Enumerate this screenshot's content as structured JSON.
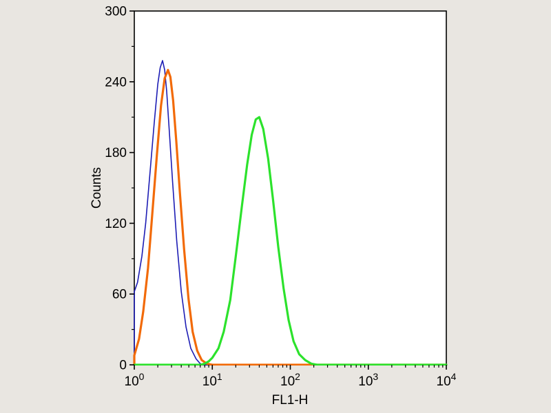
{
  "figure": {
    "background_color": "#e9e6e1",
    "plot_background_color": "#ffffff",
    "frame_color": "#000000"
  },
  "chart_data": {
    "type": "line",
    "title": "",
    "xlabel": "FL1-H",
    "ylabel": "Counts",
    "x_scale": "log10",
    "xlim": [
      1,
      10000
    ],
    "ylim": [
      0,
      300
    ],
    "y_ticks": [
      0,
      60,
      120,
      180,
      240,
      300
    ],
    "y_minor_step": 30,
    "x_tick_exponents": [
      0,
      1,
      2,
      3,
      4
    ],
    "x_tick_base": "10",
    "grid": false,
    "legend": "none",
    "series": [
      {
        "name": "blue-curve",
        "color": "#1c1cb4",
        "line_width": 1.6,
        "peak": {
          "x": 2.3,
          "y": 258
        },
        "points": [
          [
            1,
            0
          ],
          [
            1,
            62
          ],
          [
            1.1,
            70
          ],
          [
            1.25,
            92
          ],
          [
            1.4,
            120
          ],
          [
            1.6,
            165
          ],
          [
            1.8,
            205
          ],
          [
            2.0,
            238
          ],
          [
            2.15,
            252
          ],
          [
            2.3,
            258
          ],
          [
            2.45,
            250
          ],
          [
            2.6,
            232
          ],
          [
            2.8,
            200
          ],
          [
            3.1,
            155
          ],
          [
            3.5,
            105
          ],
          [
            4.0,
            62
          ],
          [
            4.6,
            32
          ],
          [
            5.3,
            14
          ],
          [
            6.2,
            5
          ],
          [
            7.0,
            1
          ],
          [
            7.6,
            0
          ],
          [
            10000,
            0
          ]
        ]
      },
      {
        "name": "orange-curve",
        "color": "#f26a08",
        "line_width": 3.2,
        "peak": {
          "x": 2.7,
          "y": 250
        },
        "points": [
          [
            1,
            0
          ],
          [
            1,
            8
          ],
          [
            1.15,
            22
          ],
          [
            1.3,
            45
          ],
          [
            1.5,
            82
          ],
          [
            1.7,
            128
          ],
          [
            1.95,
            178
          ],
          [
            2.2,
            220
          ],
          [
            2.45,
            243
          ],
          [
            2.7,
            250
          ],
          [
            2.9,
            244
          ],
          [
            3.15,
            224
          ],
          [
            3.45,
            190
          ],
          [
            3.85,
            145
          ],
          [
            4.35,
            98
          ],
          [
            4.95,
            56
          ],
          [
            5.6,
            28
          ],
          [
            6.4,
            12
          ],
          [
            7.3,
            4
          ],
          [
            8.5,
            1
          ],
          [
            10,
            0
          ],
          [
            10000,
            0
          ]
        ]
      },
      {
        "name": "green-curve",
        "color": "#2ce22c",
        "line_width": 3.2,
        "peak": {
          "x": 38,
          "y": 210
        },
        "points": [
          [
            1,
            0
          ],
          [
            7,
            0
          ],
          [
            8,
            1
          ],
          [
            9,
            3
          ],
          [
            10,
            6
          ],
          [
            12,
            14
          ],
          [
            14,
            28
          ],
          [
            17,
            55
          ],
          [
            20,
            92
          ],
          [
            24,
            135
          ],
          [
            28,
            170
          ],
          [
            32,
            195
          ],
          [
            36,
            208
          ],
          [
            40,
            210
          ],
          [
            45,
            200
          ],
          [
            52,
            175
          ],
          [
            60,
            140
          ],
          [
            70,
            100
          ],
          [
            82,
            65
          ],
          [
            95,
            38
          ],
          [
            110,
            20
          ],
          [
            130,
            9
          ],
          [
            155,
            4
          ],
          [
            185,
            1
          ],
          [
            220,
            0
          ],
          [
            10000,
            0
          ]
        ]
      }
    ]
  }
}
